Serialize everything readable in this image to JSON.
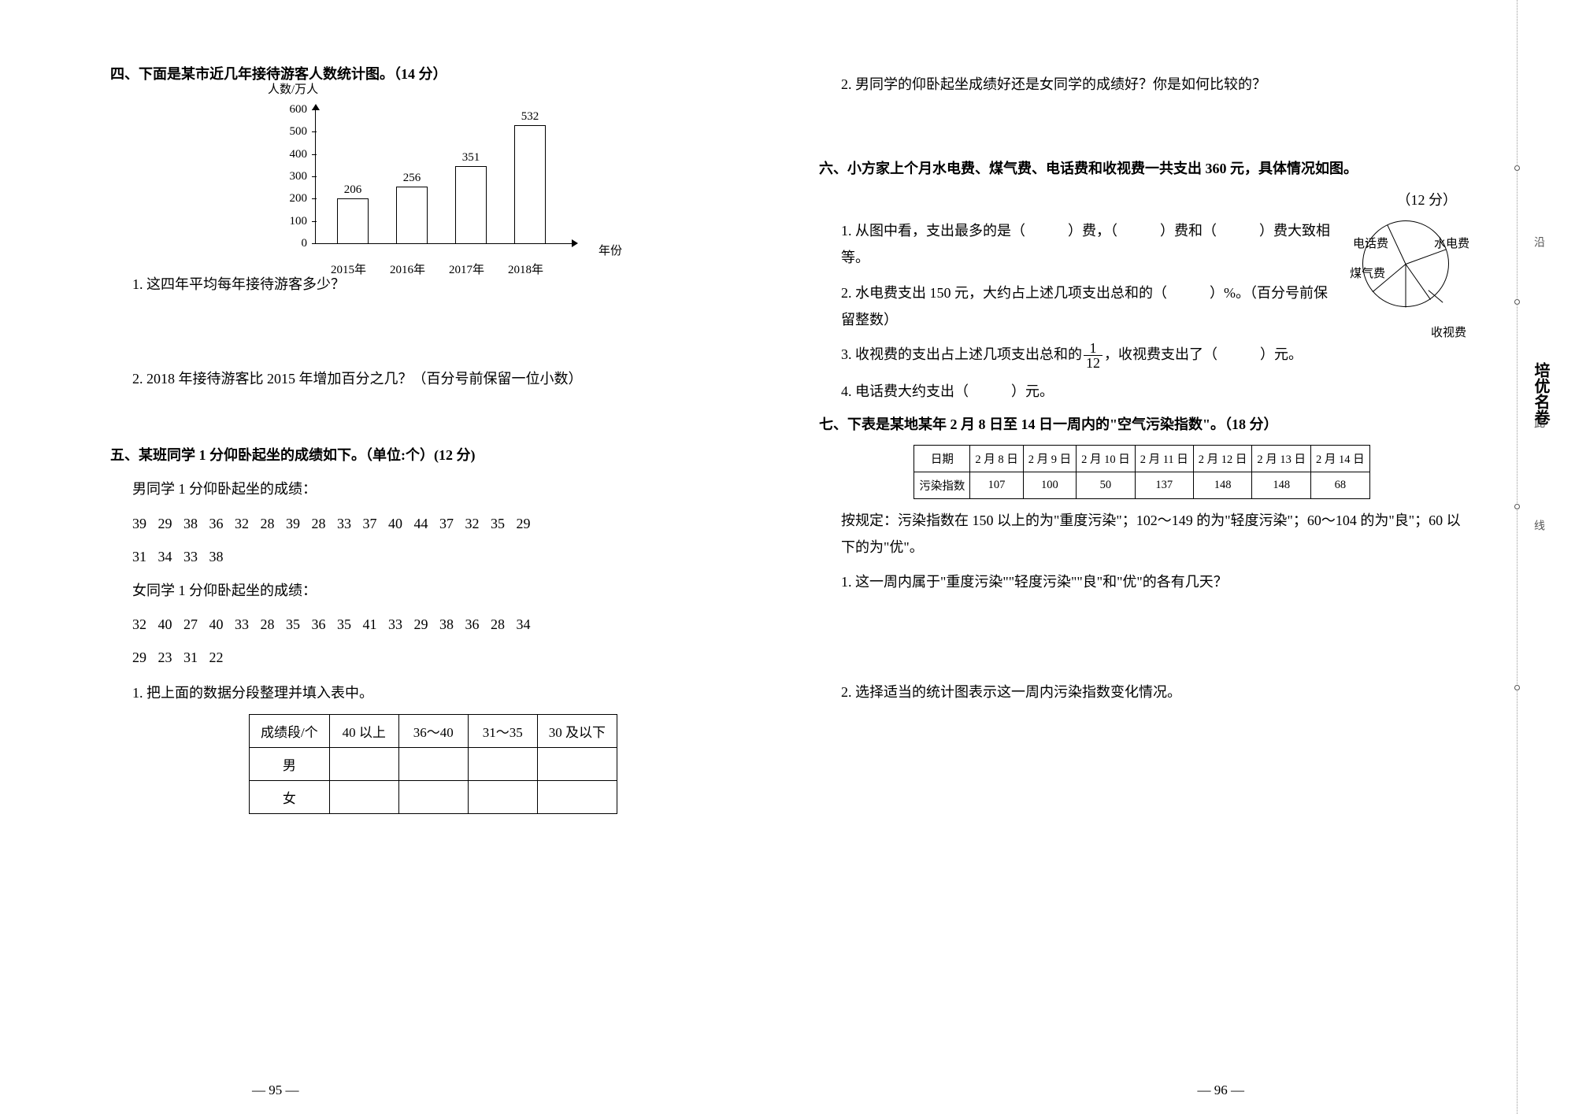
{
  "section4": {
    "title": "四、下面是某市近几年接待游客人数统计图。（14 分）",
    "chart": {
      "type": "bar",
      "y_axis_title": "人数/万人",
      "x_axis_title": "年份",
      "categories": [
        "2015年",
        "2016年",
        "2017年",
        "2018年"
      ],
      "values": [
        206,
        256,
        351,
        532
      ],
      "ylim": [
        0,
        600
      ],
      "ytick_step": 100,
      "yticks": [
        0,
        100,
        200,
        300,
        400,
        500,
        600
      ],
      "bar_color": "#ffffff",
      "border_color": "#000000",
      "axis_color": "#000000"
    },
    "q1": "1. 这四年平均每年接待游客多少？",
    "q2": "2. 2018 年接待游客比 2015 年增加百分之几？（百分号前保留一位小数）"
  },
  "section5": {
    "title": "五、某班同学 1 分仰卧起坐的成绩如下。（单位:个）(12 分)",
    "male_label": "男同学 1 分仰卧起坐的成绩：",
    "male_scores_l1": "39  29  38  36  32  28  39  28  33  37  40  44  37  32  35  29",
    "male_scores_l2": "31  34  33  38",
    "female_label": "女同学 1 分仰卧起坐的成绩：",
    "female_scores_l1": "32  40  27  40  33  28  35  36  35  41  33  29  38  36  28  34",
    "female_scores_l2": "29  23  31  22",
    "q1": "1. 把上面的数据分段整理并填入表中。",
    "table": {
      "headers": [
        "成绩段/个",
        "40 以上",
        "36～40",
        "31～35",
        "30 及以下"
      ],
      "rows": [
        [
          "男",
          "",
          "",
          "",
          ""
        ],
        [
          "女",
          "",
          "",
          "",
          ""
        ]
      ]
    },
    "q2": "2. 男同学的仰卧起坐成绩好还是女同学的成绩好？你是如何比较的？"
  },
  "section6": {
    "title": "六、小方家上个月水电费、煤气费、电话费和收视费一共支出 360 元，具体情况如图。",
    "points": "（12 分）",
    "q1": "1. 从图中看，支出最多的是（　　　）费，（　　　）费和（　　　）费大致相等。",
    "q2": "2. 水电费支出 150 元，大约占上述几项支出总和的（　　　）%。（百分号前保留整数）",
    "q3_a": "3. 收视费的支出占上述几项支出总和的",
    "q3_b": "，收视费支出了（　　　）元。",
    "q3_frac_num": "1",
    "q3_frac_den": "12",
    "q4": "4. 电话费大约支出（　　　）元。",
    "pie": {
      "type": "pie",
      "labels": {
        "tel": "电话费",
        "util": "水电费",
        "gas": "煤气费",
        "tv": "收视费"
      },
      "angles_deg": [
        -115,
        -20,
        55,
        90,
        140
      ],
      "border_color": "#000000",
      "fill_color": "#ffffff"
    }
  },
  "section7": {
    "title": "七、下表是某地某年 2 月 8 日至 14 日一周内的\"空气污染指数\"。（18 分）",
    "table": {
      "header_label": "日期",
      "row_label": "污染指数",
      "dates": [
        "2 月 8 日",
        "2 月 9 日",
        "2 月 10 日",
        "2 月 11 日",
        "2 月 12 日",
        "2 月 13 日",
        "2 月 14 日"
      ],
      "values": [
        107,
        100,
        50,
        137,
        148,
        148,
        68
      ]
    },
    "rule": "按规定：污染指数在 150 以上的为\"重度污染\"；102～149 的为\"轻度污染\"；60～104 的为\"良\"；60 以下的为\"优\"。",
    "q1": "1. 这一周内属于\"重度污染\"\"轻度污染\"\"良\"和\"优\"的各有几天？",
    "q2": "2. 选择适当的统计图表示这一周内污染指数变化情况。"
  },
  "footer": {
    "left": "— 95 —",
    "right": "— 96 —"
  },
  "margin": {
    "t1": "沿",
    "t2": "此",
    "t3": "线",
    "logo1": "培",
    "logo2": "优",
    "logo3": "名",
    "logo4": "卷"
  }
}
